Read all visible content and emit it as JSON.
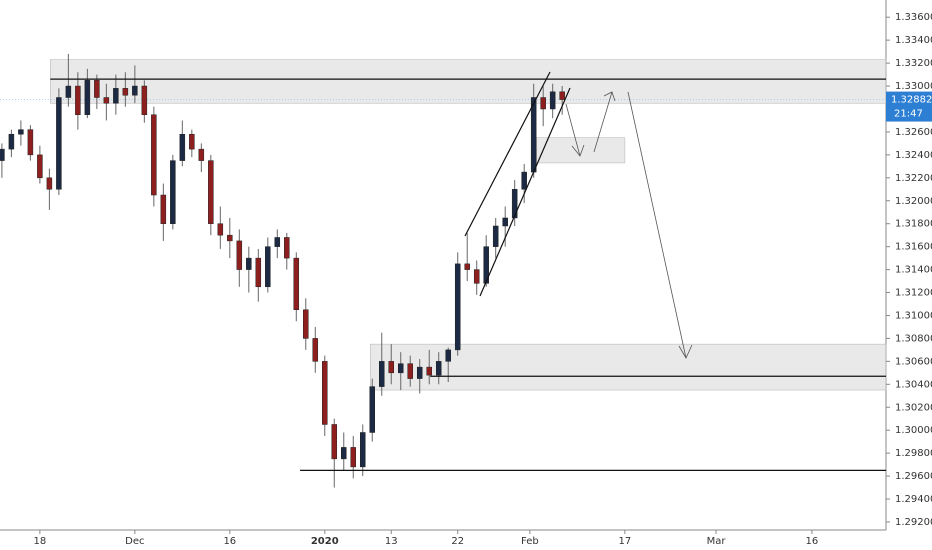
{
  "chart_data": {
    "type": "candlestick",
    "open": [
      1.3235,
      1.3245,
      1.3258,
      1.3262,
      1.324,
      1.322,
      1.321,
      1.329,
      1.33,
      1.3275,
      1.3305,
      1.329,
      1.3285,
      1.3298,
      1.3292,
      1.33,
      1.3275,
      1.3205,
      1.318,
      1.3235,
      1.3258,
      1.3245,
      1.3235,
      1.318,
      1.317,
      1.3165,
      1.314,
      1.315,
      1.3125,
      1.316,
      1.3168,
      1.315,
      1.3105,
      1.308,
      1.306,
      1.3005,
      1.2975,
      1.2985,
      1.2968,
      1.2998,
      1.3038,
      1.306,
      1.305,
      1.3058,
      1.3045,
      1.3055,
      1.3048,
      1.306,
      1.307,
      1.3145,
      1.314,
      1.3128,
      1.316,
      1.3178,
      1.3185,
      1.321,
      1.3225,
      1.329,
      1.328,
      1.3295
    ],
    "high": [
      1.325,
      1.3262,
      1.327,
      1.3266,
      1.3248,
      1.3228,
      1.3298,
      1.3328,
      1.3312,
      1.3315,
      1.331,
      1.3302,
      1.331,
      1.3312,
      1.3318,
      1.3305,
      1.3282,
      1.3215,
      1.324,
      1.327,
      1.3262,
      1.325,
      1.324,
      1.3195,
      1.3185,
      1.3175,
      1.316,
      1.3158,
      1.3168,
      1.3175,
      1.3172,
      1.3155,
      1.3115,
      1.309,
      1.3065,
      1.301,
      1.2998,
      1.2995,
      1.3005,
      1.3045,
      1.3085,
      1.3075,
      1.3068,
      1.3065,
      1.3062,
      1.307,
      1.3068,
      1.3072,
      1.3155,
      1.3172,
      1.3148,
      1.317,
      1.3185,
      1.3195,
      1.3218,
      1.3232,
      1.3302,
      1.33,
      1.3302,
      1.33
    ],
    "low": [
      1.322,
      1.3238,
      1.3248,
      1.3235,
      1.3215,
      1.3192,
      1.3205,
      1.3282,
      1.3262,
      1.3272,
      1.328,
      1.327,
      1.3275,
      1.3282,
      1.3285,
      1.3268,
      1.3195,
      1.3165,
      1.3175,
      1.323,
      1.3238,
      1.3225,
      1.317,
      1.3158,
      1.315,
      1.3125,
      1.312,
      1.3112,
      1.312,
      1.315,
      1.314,
      1.3095,
      1.307,
      1.305,
      1.2995,
      1.295,
      1.2965,
      1.2958,
      1.296,
      1.299,
      1.303,
      1.304,
      1.3035,
      1.3038,
      1.3032,
      1.304,
      1.304,
      1.3042,
      1.3065,
      1.313,
      1.3118,
      1.3125,
      1.315,
      1.316,
      1.3178,
      1.3198,
      1.322,
      1.3265,
      1.3272,
      1.3275
    ],
    "close": [
      1.3245,
      1.3258,
      1.3262,
      1.324,
      1.322,
      1.321,
      1.329,
      1.33,
      1.3275,
      1.3305,
      1.329,
      1.3285,
      1.3298,
      1.3292,
      1.33,
      1.3275,
      1.3205,
      1.318,
      1.3235,
      1.3258,
      1.3245,
      1.3235,
      1.318,
      1.317,
      1.3165,
      1.314,
      1.315,
      1.3125,
      1.316,
      1.3168,
      1.315,
      1.3105,
      1.308,
      1.306,
      1.3005,
      1.2975,
      1.2985,
      1.2968,
      1.2998,
      1.3038,
      1.306,
      1.305,
      1.3058,
      1.3045,
      1.3055,
      1.3048,
      1.306,
      1.307,
      1.3145,
      1.314,
      1.3128,
      1.316,
      1.3178,
      1.3185,
      1.321,
      1.3225,
      1.329,
      1.328,
      1.3295,
      1.32882
    ],
    "up_color": "#1c2a44",
    "down_color": "#8e1f1f",
    "xlim": [
      -0.2,
      93.1
    ],
    "ylim": [
      1.2913,
      1.3375
    ],
    "xticks": [
      {
        "value": 4,
        "label": "18"
      },
      {
        "value": 14,
        "label": "Dec"
      },
      {
        "value": 24,
        "label": "16"
      },
      {
        "value": 34,
        "label": "2020"
      },
      {
        "value": 41,
        "label": "13"
      },
      {
        "value": 48,
        "label": "22"
      },
      {
        "value": 55.6,
        "label": "Feb"
      },
      {
        "value": 65.6,
        "label": "17"
      },
      {
        "value": 75.2,
        "label": "Mar"
      },
      {
        "value": 85.3,
        "label": "16"
      }
    ],
    "yticks": [
      {
        "value": 1.292,
        "label": "1.29200"
      },
      {
        "value": 1.294,
        "label": "1.29400"
      },
      {
        "value": 1.296,
        "label": "1.29600"
      },
      {
        "value": 1.298,
        "label": "1.29800"
      },
      {
        "value": 1.3,
        "label": "1.30000"
      },
      {
        "value": 1.302,
        "label": "1.30200"
      },
      {
        "value": 1.304,
        "label": "1.30400"
      },
      {
        "value": 1.306,
        "label": "1.30600"
      },
      {
        "value": 1.308,
        "label": "1.30800"
      },
      {
        "value": 1.31,
        "label": "1.31000"
      },
      {
        "value": 1.312,
        "label": "1.31200"
      },
      {
        "value": 1.314,
        "label": "1.31400"
      },
      {
        "value": 1.316,
        "label": "1.31600"
      },
      {
        "value": 1.318,
        "label": "1.31800"
      },
      {
        "value": 1.32,
        "label": "1.32000"
      },
      {
        "value": 1.322,
        "label": "1.32200"
      },
      {
        "value": 1.324,
        "label": "1.32400"
      },
      {
        "value": 1.326,
        "label": "1.32600"
      },
      {
        "value": 1.33,
        "label": "1.33000"
      },
      {
        "value": 1.332,
        "label": "1.33200"
      },
      {
        "value": 1.334,
        "label": "1.33400"
      },
      {
        "value": 1.336,
        "label": "1.33600"
      }
    ],
    "zones": [
      {
        "top": 1.3323,
        "bottom": 1.3285,
        "from": 5.1,
        "to": 93.1
      },
      {
        "top": 1.3075,
        "bottom": 1.3035,
        "from": 38.8,
        "to": 93.1
      },
      {
        "top": 1.3255,
        "bottom": 1.3233,
        "from": 56.3,
        "to": 65.6
      }
    ],
    "hlines": [
      {
        "price": 1.3306,
        "from": 5.1
      },
      {
        "price": 1.3047,
        "from": 45.1
      },
      {
        "price": 1.2965,
        "from": 31.4
      }
    ],
    "last_price": {
      "value": 1.32882,
      "label": "1.32882"
    },
    "countdown": "21:47"
  }
}
